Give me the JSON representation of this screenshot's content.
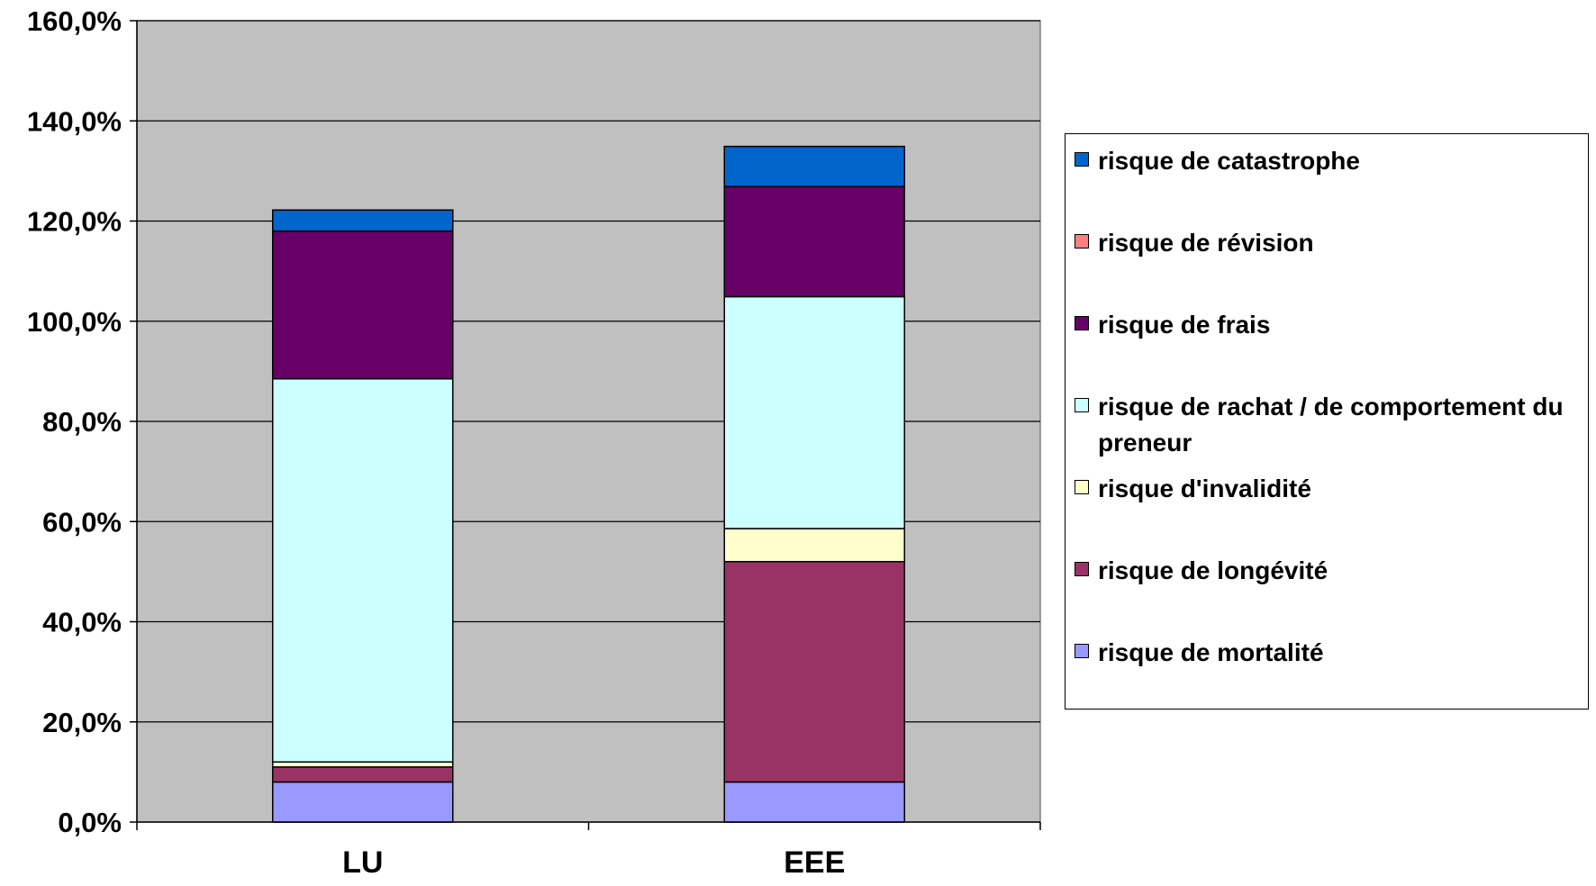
{
  "chart_data": {
    "type": "bar",
    "stacked": true,
    "categories": [
      "LU",
      "EEE"
    ],
    "ylim": [
      0,
      160
    ],
    "y_ticks": [
      "0,0%",
      "20,0%",
      "40,0%",
      "60,0%",
      "80,0%",
      "100,0%",
      "120,0%",
      "140,0%",
      "160,0%"
    ],
    "y_tick_values": [
      0,
      20,
      40,
      60,
      80,
      100,
      120,
      140,
      160
    ],
    "grid": true,
    "plot_background": "#c0c0c0",
    "legend_position": "right",
    "series": [
      {
        "name": "risque de mortalité",
        "color": "#9999ff",
        "values": [
          8.0,
          8.0
        ]
      },
      {
        "name": "risque de longévité",
        "color": "#993366",
        "values": [
          3.0,
          44.0
        ]
      },
      {
        "name": "risque d'invalidité",
        "color": "#ffffcc",
        "values": [
          1.0,
          6.6
        ]
      },
      {
        "name": "risque de rachat / de comportement du preneur",
        "color": "#ccffff",
        "values": [
          76.5,
          46.3
        ]
      },
      {
        "name": "risque de frais",
        "color": "#660066",
        "values": [
          29.5,
          22.0
        ]
      },
      {
        "name": "risque de révision",
        "color": "#ff8080",
        "values": [
          0,
          0
        ]
      },
      {
        "name": "risque de catastrophe",
        "color": "#0066cc",
        "values": [
          4.2,
          8.0
        ]
      }
    ]
  }
}
